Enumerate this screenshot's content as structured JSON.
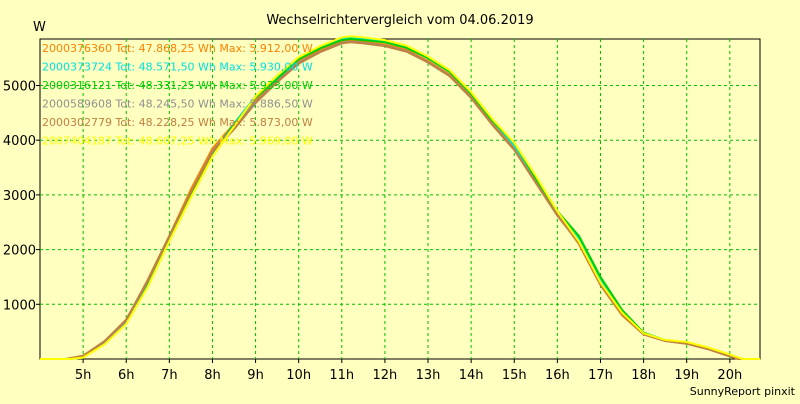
{
  "chart_data": {
    "type": "line",
    "title": "Wechselrichtervergleich vom 04.06.2019",
    "ylabel": "W",
    "xlabel": "",
    "footer": "SunnyReport pinxit",
    "background": "#ffffc0",
    "grid": true,
    "grid_color": "#00c000",
    "legend_position": "top-left inside plot",
    "xlim": [
      4.0,
      20.7
    ],
    "ylim": [
      0,
      5850
    ],
    "x_ticks": [
      5,
      6,
      7,
      8,
      9,
      10,
      11,
      12,
      13,
      14,
      15,
      16,
      17,
      18,
      19,
      20
    ],
    "x_tick_labels": [
      "5h",
      "6h",
      "7h",
      "8h",
      "9h",
      "10h",
      "11h",
      "12h",
      "13h",
      "14h",
      "15h",
      "16h",
      "17h",
      "18h",
      "19h",
      "20h"
    ],
    "y_ticks": [
      1000,
      2000,
      3000,
      4000,
      5000
    ],
    "y_tick_labels": [
      "1000",
      "2000",
      "3000",
      "4000",
      "5000"
    ],
    "series": [
      {
        "name": "2000376360 Tot: 47.868,25 Wh Max: 5.912,00 W",
        "color": "#ff8000",
        "points": [
          [
            4.0,
            0
          ],
          [
            4.6,
            0
          ],
          [
            5.0,
            60
          ],
          [
            5.5,
            320
          ],
          [
            6.0,
            700
          ],
          [
            6.5,
            1450
          ],
          [
            7.0,
            2250
          ],
          [
            7.5,
            3100
          ],
          [
            8.0,
            3850
          ],
          [
            8.5,
            4300
          ],
          [
            9.0,
            4750
          ],
          [
            9.5,
            5100
          ],
          [
            10.0,
            5450
          ],
          [
            10.5,
            5650
          ],
          [
            11.0,
            5800
          ],
          [
            11.2,
            5830
          ],
          [
            11.5,
            5800
          ],
          [
            12.0,
            5750
          ],
          [
            12.5,
            5650
          ],
          [
            13.0,
            5450
          ],
          [
            13.5,
            5200
          ],
          [
            14.0,
            4800
          ],
          [
            14.5,
            4300
          ],
          [
            15.0,
            3850
          ],
          [
            15.5,
            3250
          ],
          [
            16.0,
            2650
          ],
          [
            16.5,
            2100
          ],
          [
            17.0,
            1350
          ],
          [
            17.5,
            800
          ],
          [
            18.0,
            450
          ],
          [
            18.5,
            330
          ],
          [
            19.0,
            280
          ],
          [
            19.5,
            180
          ],
          [
            20.0,
            50
          ],
          [
            20.2,
            0
          ],
          [
            20.7,
            0
          ]
        ]
      },
      {
        "name": "2000373724 Tot: 48.571,50 Wh Max: 5.930,00 W",
        "color": "#00e0e0",
        "points": [
          [
            4.0,
            0
          ],
          [
            4.7,
            0
          ],
          [
            5.0,
            30
          ],
          [
            5.5,
            280
          ],
          [
            6.0,
            660
          ],
          [
            6.5,
            1350
          ],
          [
            7.0,
            2200
          ],
          [
            7.5,
            3000
          ],
          [
            8.0,
            3750
          ],
          [
            8.5,
            4300
          ],
          [
            9.0,
            4800
          ],
          [
            9.5,
            5150
          ],
          [
            10.0,
            5500
          ],
          [
            10.5,
            5700
          ],
          [
            11.0,
            5850
          ],
          [
            11.2,
            5870
          ],
          [
            11.5,
            5850
          ],
          [
            12.0,
            5800
          ],
          [
            12.5,
            5700
          ],
          [
            13.0,
            5500
          ],
          [
            13.5,
            5250
          ],
          [
            14.0,
            4850
          ],
          [
            14.5,
            4350
          ],
          [
            15.0,
            3900
          ],
          [
            15.5,
            3300
          ],
          [
            16.0,
            2700
          ],
          [
            16.5,
            2200
          ],
          [
            17.0,
            1450
          ],
          [
            17.5,
            850
          ],
          [
            18.0,
            480
          ],
          [
            18.5,
            350
          ],
          [
            19.0,
            300
          ],
          [
            19.5,
            200
          ],
          [
            20.0,
            70
          ],
          [
            20.3,
            0
          ],
          [
            20.7,
            0
          ]
        ]
      },
      {
        "name": "2000316121 Tot: 48.331,25 Wh Max: 5.933,00 W",
        "color": "#00d000",
        "points": [
          [
            4.0,
            0
          ],
          [
            4.7,
            0
          ],
          [
            5.0,
            40
          ],
          [
            5.5,
            300
          ],
          [
            6.0,
            680
          ],
          [
            6.5,
            1400
          ],
          [
            7.0,
            2200
          ],
          [
            7.5,
            3000
          ],
          [
            8.0,
            3780
          ],
          [
            8.5,
            4280
          ],
          [
            9.0,
            4780
          ],
          [
            9.5,
            5120
          ],
          [
            10.0,
            5480
          ],
          [
            10.5,
            5680
          ],
          [
            11.0,
            5830
          ],
          [
            11.2,
            5850
          ],
          [
            11.5,
            5830
          ],
          [
            12.0,
            5790
          ],
          [
            12.5,
            5690
          ],
          [
            13.0,
            5500
          ],
          [
            13.5,
            5250
          ],
          [
            14.0,
            4850
          ],
          [
            14.5,
            4350
          ],
          [
            15.0,
            3950
          ],
          [
            15.5,
            3300
          ],
          [
            16.0,
            2700
          ],
          [
            16.5,
            2250
          ],
          [
            17.0,
            1500
          ],
          [
            17.5,
            900
          ],
          [
            18.0,
            480
          ],
          [
            18.5,
            340
          ],
          [
            19.0,
            290
          ],
          [
            19.5,
            190
          ],
          [
            20.0,
            60
          ],
          [
            20.3,
            0
          ],
          [
            20.7,
            0
          ]
        ]
      },
      {
        "name": "2000589608 Tot: 48.245,50 Wh Max: 5.886,50 W",
        "color": "#909090",
        "points": [
          [
            4.0,
            0
          ],
          [
            4.6,
            0
          ],
          [
            5.0,
            50
          ],
          [
            5.5,
            310
          ],
          [
            6.0,
            690
          ],
          [
            6.5,
            1420
          ],
          [
            7.0,
            2230
          ],
          [
            7.5,
            3050
          ],
          [
            8.0,
            3800
          ],
          [
            8.5,
            4250
          ],
          [
            9.0,
            4700
          ],
          [
            9.5,
            5080
          ],
          [
            10.0,
            5420
          ],
          [
            10.5,
            5620
          ],
          [
            11.0,
            5780
          ],
          [
            11.2,
            5800
          ],
          [
            11.5,
            5780
          ],
          [
            12.0,
            5730
          ],
          [
            12.5,
            5630
          ],
          [
            13.0,
            5430
          ],
          [
            13.5,
            5180
          ],
          [
            14.0,
            4780
          ],
          [
            14.5,
            4280
          ],
          [
            15.0,
            3830
          ],
          [
            15.5,
            3230
          ],
          [
            16.0,
            2630
          ],
          [
            16.5,
            2130
          ],
          [
            17.0,
            1380
          ],
          [
            17.5,
            830
          ],
          [
            18.0,
            460
          ],
          [
            18.5,
            330
          ],
          [
            19.0,
            280
          ],
          [
            19.5,
            180
          ],
          [
            20.0,
            50
          ],
          [
            20.2,
            0
          ],
          [
            20.7,
            0
          ]
        ]
      },
      {
        "name": "2000302779 Tot: 48.228,25 Wh Max: 5.873,00 W",
        "color": "#c08040",
        "points": [
          [
            4.0,
            0
          ],
          [
            4.6,
            0
          ],
          [
            5.0,
            55
          ],
          [
            5.5,
            330
          ],
          [
            6.0,
            720
          ],
          [
            6.5,
            1440
          ],
          [
            7.0,
            2250
          ],
          [
            7.5,
            3050
          ],
          [
            8.0,
            3780
          ],
          [
            8.5,
            4200
          ],
          [
            9.0,
            4680
          ],
          [
            9.5,
            5060
          ],
          [
            10.0,
            5400
          ],
          [
            10.5,
            5610
          ],
          [
            11.0,
            5770
          ],
          [
            11.2,
            5790
          ],
          [
            11.5,
            5770
          ],
          [
            12.0,
            5720
          ],
          [
            12.5,
            5620
          ],
          [
            13.0,
            5420
          ],
          [
            13.5,
            5170
          ],
          [
            14.0,
            4770
          ],
          [
            14.5,
            4270
          ],
          [
            15.0,
            3820
          ],
          [
            15.5,
            3220
          ],
          [
            16.0,
            2620
          ],
          [
            16.5,
            2120
          ],
          [
            17.0,
            1360
          ],
          [
            17.5,
            820
          ],
          [
            18.0,
            450
          ],
          [
            18.5,
            330
          ],
          [
            19.0,
            280
          ],
          [
            19.5,
            180
          ],
          [
            20.0,
            50
          ],
          [
            20.2,
            0
          ],
          [
            20.7,
            0
          ]
        ]
      },
      {
        "name": "2007404187 Tot: 48.607,25 Wh Max: 5.969,00 W",
        "color": "#ffff00",
        "points": [
          [
            4.0,
            0
          ],
          [
            4.7,
            0
          ],
          [
            5.0,
            25
          ],
          [
            5.5,
            270
          ],
          [
            6.0,
            640
          ],
          [
            6.5,
            1320
          ],
          [
            7.0,
            2150
          ],
          [
            7.5,
            2950
          ],
          [
            8.0,
            3700
          ],
          [
            8.5,
            4250
          ],
          [
            9.0,
            4800
          ],
          [
            9.5,
            5180
          ],
          [
            10.0,
            5520
          ],
          [
            10.5,
            5720
          ],
          [
            11.0,
            5880
          ],
          [
            11.2,
            5900
          ],
          [
            11.5,
            5880
          ],
          [
            12.0,
            5830
          ],
          [
            12.5,
            5730
          ],
          [
            13.0,
            5530
          ],
          [
            13.5,
            5280
          ],
          [
            14.0,
            4880
          ],
          [
            14.5,
            4380
          ],
          [
            15.0,
            3950
          ],
          [
            15.5,
            3350
          ],
          [
            16.0,
            2700
          ],
          [
            16.5,
            2150
          ],
          [
            17.0,
            1400
          ],
          [
            17.5,
            850
          ],
          [
            18.0,
            470
          ],
          [
            18.5,
            350
          ],
          [
            19.0,
            310
          ],
          [
            19.5,
            210
          ],
          [
            20.0,
            80
          ],
          [
            20.3,
            0
          ],
          [
            20.7,
            0
          ]
        ]
      }
    ]
  }
}
